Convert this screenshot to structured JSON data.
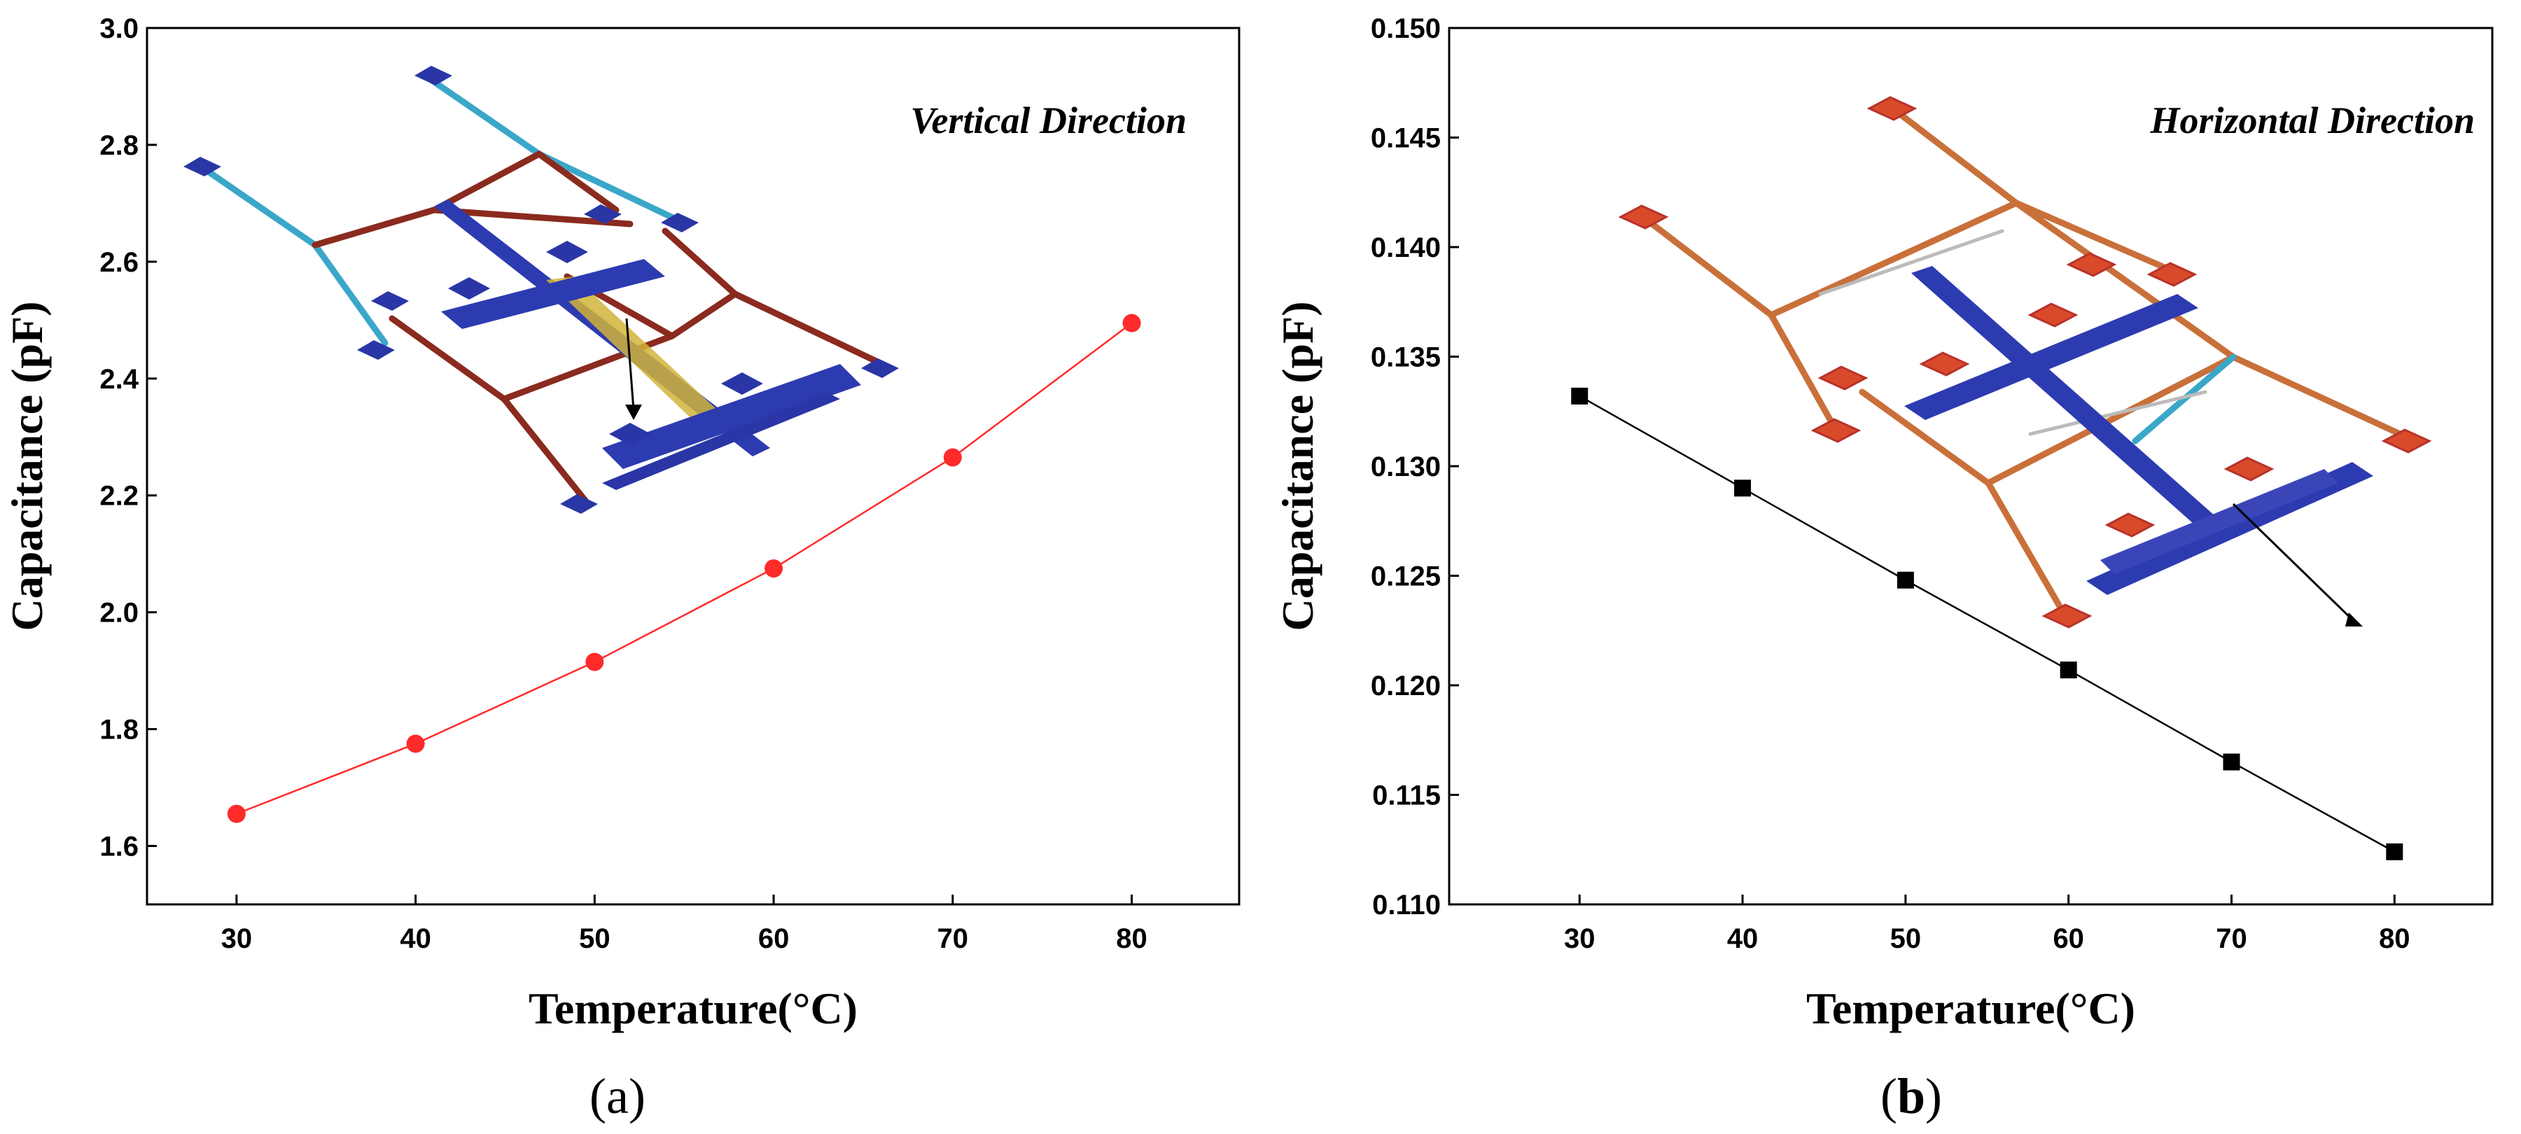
{
  "colors": {
    "series_a": "#ff2a2a",
    "series_b": "#000000",
    "mesh_blue": "#2d3bb0",
    "mesh_red": "#8b2a1e",
    "pad_red": "#d84a2a"
  },
  "chart_data": [
    {
      "type": "line",
      "panel": "a",
      "caption_letter": "a",
      "annotation": "Vertical Direction",
      "xlabel": "Temperature(°C)",
      "ylabel": "Capacitance (pF)",
      "xlim": [
        25,
        86
      ],
      "ylim": [
        1.5,
        3.0
      ],
      "xticks": [
        30,
        40,
        50,
        60,
        70,
        80
      ],
      "yticks": [
        1.6,
        1.8,
        2.0,
        2.2,
        2.4,
        2.6,
        2.8,
        3.0
      ],
      "ytick_labels": [
        "1.6",
        "1.8",
        "2.0",
        "2.2",
        "2.4",
        "2.6",
        "2.8",
        "3.0"
      ],
      "marker": "circle",
      "series": [
        {
          "name": "Vertical Direction",
          "x": [
            30,
            40,
            50,
            60,
            70,
            80
          ],
          "values": [
            1.655,
            1.775,
            1.915,
            2.075,
            2.265,
            2.495
          ]
        }
      ]
    },
    {
      "type": "line",
      "panel": "b",
      "caption_letter": "b",
      "annotation": "Horizontal Direction",
      "xlabel": "Temperature(°C)",
      "ylabel": "Capacitance (pF)",
      "xlim": [
        22,
        86
      ],
      "ylim": [
        0.11,
        0.15
      ],
      "xticks": [
        30,
        40,
        50,
        60,
        70,
        80
      ],
      "yticks": [
        0.11,
        0.115,
        0.12,
        0.125,
        0.13,
        0.135,
        0.14,
        0.145,
        0.15
      ],
      "ytick_labels": [
        "0.110",
        "0.115",
        "0.120",
        "0.125",
        "0.130",
        "0.135",
        "0.140",
        "0.145",
        "0.150"
      ],
      "marker": "square",
      "series": [
        {
          "name": "Horizontal Direction",
          "x": [
            30,
            40,
            50,
            60,
            70,
            80
          ],
          "values": [
            0.1332,
            0.129,
            0.1248,
            0.1207,
            0.1165,
            0.1124
          ]
        }
      ]
    }
  ]
}
